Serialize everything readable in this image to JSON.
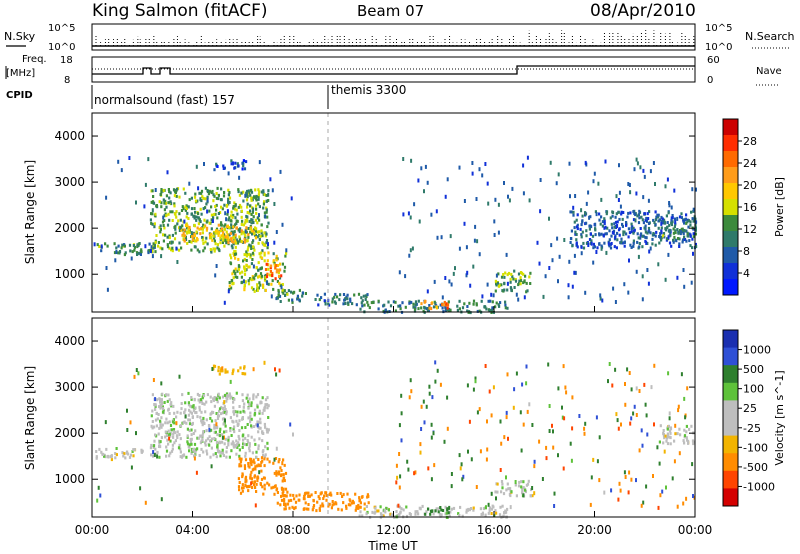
{
  "header": {
    "station": "King Salmon (fitACF)",
    "beam": "Beam 07",
    "date": "08/Apr/2010"
  },
  "status_panel": {
    "nsky_label": "N.Sky",
    "nsky_ticks": [
      "10^5",
      "10^0"
    ],
    "nsearch_label": "N.Search",
    "nsearch_ticks": [
      "10^5",
      "10^0"
    ],
    "freq_label_line1": "Freq.",
    "freq_label_line2": "[MHz]",
    "freq_ticks": [
      "18",
      "8"
    ],
    "nave_label": "Nave",
    "nave_ticks": [
      "60",
      "0"
    ],
    "cpid_label": "CPID",
    "cpid_segments": [
      {
        "label": "normalsound (fast) 157",
        "start_hour": 0.0,
        "end_hour": 9.4
      },
      {
        "label": "themis 3300",
        "start_hour": 9.4,
        "end_hour": 24.0
      }
    ]
  },
  "chart_data": [
    {
      "type": "heatmap",
      "parameter": "power",
      "ylabel": "Slant Range [km]",
      "xlabel": "",
      "ylim": [
        180,
        4500
      ],
      "xlim": [
        0,
        24
      ],
      "yticks": [
        "1000",
        "2000",
        "3000",
        "4000"
      ],
      "colorbar_label": "Power [dB]",
      "colorbar_ticks": [
        "28",
        "24",
        "20",
        "16",
        "12",
        "8",
        "4"
      ],
      "colors": [
        "#cc0000",
        "#ff2d00",
        "#ff6a00",
        "#ff9c1a",
        "#ffc800",
        "#d6e000",
        "#3c8a3c",
        "#2f7a6a",
        "#1f5aa8",
        "#1030d8",
        "#0018ff"
      ],
      "regions": [
        {
          "x": [
            0.1,
            2.0
          ],
          "y": [
            1450,
            1700
          ],
          "value": 11
        },
        {
          "x": [
            2.2,
            2.6
          ],
          "y": [
            1500,
            1700
          ],
          "value": 9
        },
        {
          "x": [
            2.3,
            7.0
          ],
          "y": [
            1500,
            2900
          ],
          "value": 12
        },
        {
          "x": [
            3.5,
            6.5
          ],
          "y": [
            1700,
            2100
          ],
          "value": 18
        },
        {
          "x": [
            4.7,
            6.1
          ],
          "y": [
            3300,
            3500
          ],
          "value": 5
        },
        {
          "x": [
            5.4,
            7.7
          ],
          "y": [
            650,
            1500
          ],
          "value": 14
        },
        {
          "x": [
            6.8,
            7.5
          ],
          "y": [
            900,
            1250
          ],
          "value": 24
        },
        {
          "x": [
            7.3,
            8.5
          ],
          "y": [
            400,
            700
          ],
          "value": 10
        },
        {
          "x": [
            8.8,
            11.0
          ],
          "y": [
            350,
            600
          ],
          "value": 8
        },
        {
          "x": [
            10.5,
            16.5
          ],
          "y": [
            200,
            450
          ],
          "value": 9
        },
        {
          "x": [
            13.0,
            14.2
          ],
          "y": [
            280,
            460
          ],
          "value": 22
        },
        {
          "x": [
            16.0,
            17.5
          ],
          "y": [
            650,
            1100
          ],
          "value": 12
        },
        {
          "x": [
            19.0,
            24.0
          ],
          "y": [
            1600,
            2400
          ],
          "value": 6
        },
        {
          "x": [
            22.5,
            24.0
          ],
          "y": [
            1800,
            2200
          ],
          "value": 10
        }
      ]
    },
    {
      "type": "heatmap",
      "parameter": "velocity",
      "ylabel": "Slant Range [km]",
      "xlabel": "Time UT",
      "ylim": [
        180,
        4500
      ],
      "xlim": [
        0,
        24
      ],
      "yticks": [
        "1000",
        "2000",
        "3000",
        "4000"
      ],
      "xticks": [
        "00:00",
        "04:00",
        "08:00",
        "12:00",
        "16:00",
        "20:00",
        "00:00"
      ],
      "colorbar_label": "Velocity [m s^-1]",
      "colorbar_ticks": [
        "1000",
        "500",
        "100",
        "25",
        "-25",
        "-100",
        "-500",
        "-1000"
      ],
      "colors": [
        "#1a2fb0",
        "#2f50d6",
        "#2e7f2e",
        "#5ec23a",
        "#bebebe",
        "#bebebe",
        "#f2b400",
        "#ff8c00",
        "#ff4500",
        "#d40000"
      ],
      "regions": [
        {
          "x": [
            0.1,
            2.0
          ],
          "y": [
            1450,
            1700
          ],
          "value": 0
        },
        {
          "x": [
            2.3,
            7.0
          ],
          "y": [
            1500,
            2900
          ],
          "value": 10
        },
        {
          "x": [
            4.7,
            6.1
          ],
          "y": [
            3300,
            3500
          ],
          "value": -60
        },
        {
          "x": [
            5.8,
            7.7
          ],
          "y": [
            700,
            1500
          ],
          "value": -300
        },
        {
          "x": [
            7.3,
            11.0
          ],
          "y": [
            350,
            750
          ],
          "value": -400
        },
        {
          "x": [
            10.5,
            16.5
          ],
          "y": [
            200,
            450
          ],
          "value": 0
        },
        {
          "x": [
            13.2,
            14.2
          ],
          "y": [
            250,
            420
          ],
          "value": 150
        },
        {
          "x": [
            16.0,
            17.5
          ],
          "y": [
            650,
            1000
          ],
          "value": 0
        },
        {
          "x": [
            22.5,
            24.0
          ],
          "y": [
            1800,
            2200
          ],
          "value": 0
        }
      ]
    }
  ]
}
